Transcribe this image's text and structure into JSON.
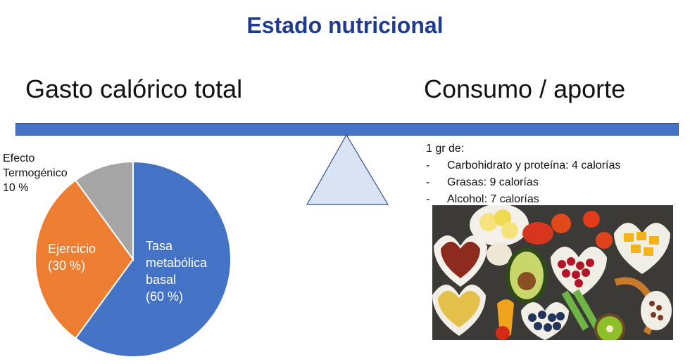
{
  "title": "Estado nutricional",
  "left_heading": "Gasto calórico total",
  "right_heading": "Consumo / aporte",
  "chart_data": {
    "type": "pie",
    "slices": [
      {
        "label_lines": [
          "Tasa",
          "metabólica",
          "basal",
          "(60 %)"
        ],
        "value": 60,
        "color": "#4472c4"
      },
      {
        "label_lines": [
          "Ejercicio",
          "(30 %)"
        ],
        "value": 30,
        "color": "#ed7d31"
      },
      {
        "label_lines": [
          "Efecto",
          "Termogénico",
          "10 %"
        ],
        "value": 10,
        "color": "#a5a5a5"
      }
    ]
  },
  "facts": {
    "intro": "1 gr de:",
    "items": [
      {
        "dash": "-",
        "text": "Carbohidrato y proteína: 4 calorías"
      },
      {
        "dash": "-",
        "text": "Grasas: 9 calorías"
      },
      {
        "dash": "-",
        "text": "Alcohol: 7 calorías"
      }
    ]
  },
  "colors": {
    "title": "#1f3a8f",
    "beam": "#4472c4",
    "fulcrum": "#dae3f3"
  }
}
